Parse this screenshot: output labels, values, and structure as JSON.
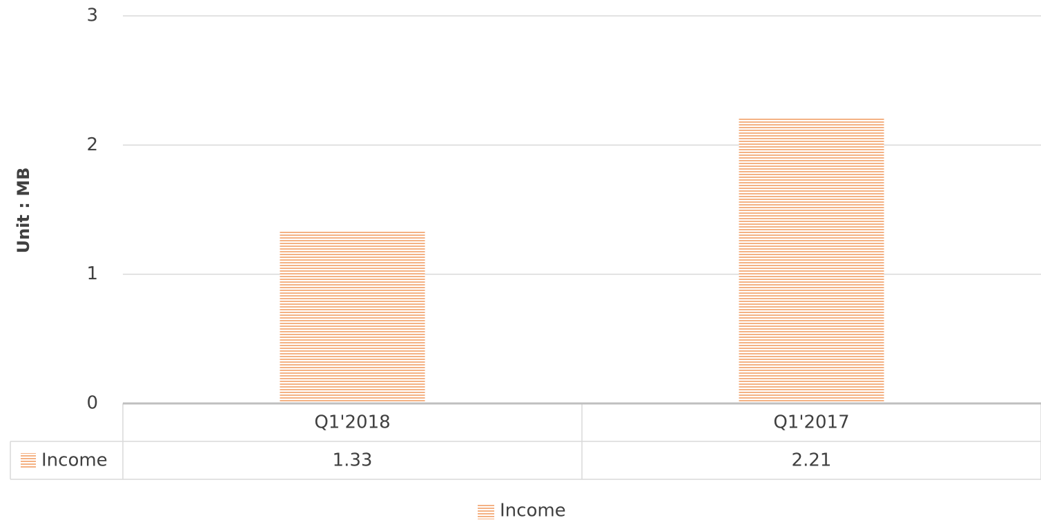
{
  "chart_data": {
    "type": "bar",
    "y_label": "Unit : MB",
    "categories": [
      "Q1'2018",
      "Q1'2017"
    ],
    "series": [
      {
        "name": "Income",
        "color": "#f4b183",
        "values": [
          1.33,
          2.21
        ]
      }
    ],
    "ylim": [
      0,
      3
    ],
    "yticks": [
      0,
      1,
      2,
      3
    ],
    "grid": true,
    "data_table": true,
    "legend": "bottom"
  }
}
